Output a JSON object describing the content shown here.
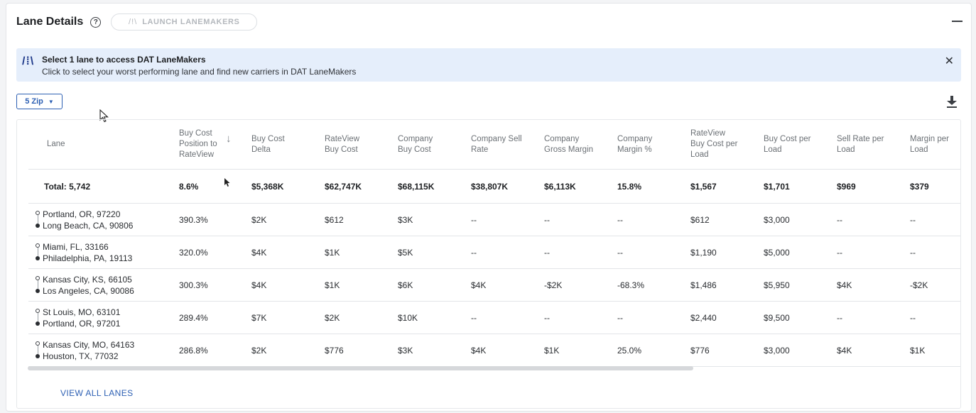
{
  "header": {
    "title": "Lane Details",
    "help_glyph": "?",
    "launch_label": "LAUNCH LANEMAKERS",
    "launch_icon": "/!\\"
  },
  "banner": {
    "icon": "/⁞\\",
    "title": "Select 1 lane to access DAT LaneMakers",
    "subtitle": "Click to select your worst performing lane and find new carriers in DAT LaneMakers",
    "close": "✕"
  },
  "filter": {
    "zip_label": "5 Zip",
    "caret": "▼"
  },
  "table": {
    "columns": [
      "Lane",
      "Buy Cost Position to RateView",
      "Buy Cost Delta",
      "RateView Buy Cost",
      "Company Buy Cost",
      "Company Sell Rate",
      "Company Gross Margin",
      "Company Margin %",
      "RateView Buy Cost per Load",
      "Buy Cost per Load",
      "Sell Rate per Load",
      "Margin per Load"
    ],
    "sort_arrow": "↓",
    "total": [
      "Total: 5,742",
      "8.6%",
      "$5,368K",
      "$62,747K",
      "$68,115K",
      "$38,807K",
      "$6,113K",
      "15.8%",
      "$1,567",
      "$1,701",
      "$969",
      "$379"
    ],
    "rows": [
      {
        "origin": "Portland, OR, 97220",
        "dest": "Long Beach, CA, 90806",
        "cells": [
          "390.3%",
          "$2K",
          "$612",
          "$3K",
          "--",
          "--",
          "--",
          "$612",
          "$3,000",
          "--",
          "--"
        ]
      },
      {
        "origin": "Miami, FL, 33166",
        "dest": "Philadelphia, PA, 19113",
        "cells": [
          "320.0%",
          "$4K",
          "$1K",
          "$5K",
          "--",
          "--",
          "--",
          "$1,190",
          "$5,000",
          "--",
          "--"
        ]
      },
      {
        "origin": "Kansas City, KS, 66105",
        "dest": "Los Angeles, CA, 90086",
        "cells": [
          "300.3%",
          "$4K",
          "$1K",
          "$6K",
          "$4K",
          "-$2K",
          "-68.3%",
          "$1,486",
          "$5,950",
          "$4K",
          "-$2K"
        ]
      },
      {
        "origin": "St Louis, MO, 63101",
        "dest": "Portland, OR, 97201",
        "cells": [
          "289.4%",
          "$7K",
          "$2K",
          "$10K",
          "--",
          "--",
          "--",
          "$2,440",
          "$9,500",
          "--",
          "--"
        ]
      },
      {
        "origin": "Kansas City, MO, 64163",
        "dest": "Houston, TX, 77032",
        "cells": [
          "286.8%",
          "$2K",
          "$776",
          "$3K",
          "$4K",
          "$1K",
          "25.0%",
          "$776",
          "$3,000",
          "$4K",
          "$1K"
        ]
      }
    ]
  },
  "footer": {
    "view_all": "VIEW ALL LANES"
  }
}
